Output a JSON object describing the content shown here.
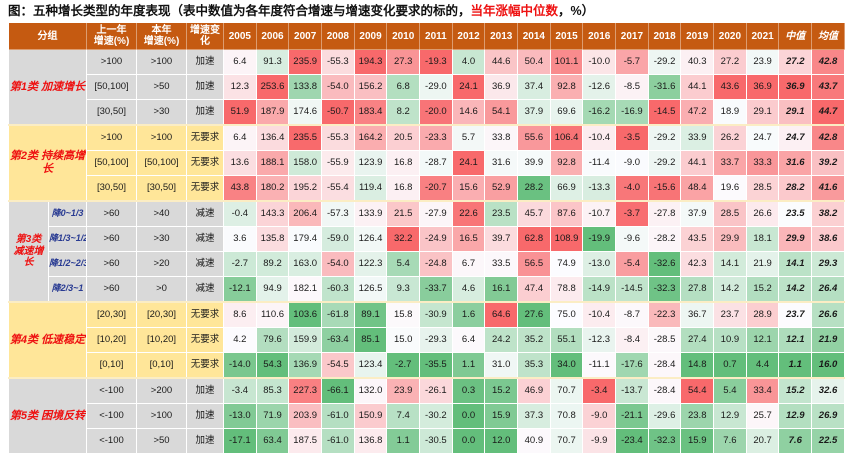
{
  "title": {
    "prefix": "图：五种增长类型的年度表现（表中数值为各年度符合增速与增速变化要求的标的，",
    "highlight": "当年涨幅中位数",
    "suffix": "，%）"
  },
  "colors": {
    "header_bg": "#C55A11",
    "header_text": "#FFFFFF",
    "gray_group_bg": "#D9D9D9",
    "yellow_group_bg": "#FFE699",
    "category_text": "#EE1111",
    "sublabel_text": "#283A92",
    "title_highlight": "#EE1111",
    "scale_min_green": "#63BE7B",
    "scale_mid_white": "#FCFCFF",
    "scale_max_red": "#F8696B"
  },
  "chart_data": {
    "type": "heatmap",
    "note": "color scale applied per column: green=min, white=median, red=max",
    "header": {
      "group": "分组",
      "prev": "上一年\n增速(%)",
      "curr": "本年\n增速(%)",
      "change": "增速变化",
      "years": [
        "2005",
        "2006",
        "2007",
        "2008",
        "2009",
        "2010",
        "2011",
        "2012",
        "2013",
        "2014",
        "2015",
        "2016",
        "2017",
        "2018",
        "2019",
        "2020",
        "2021"
      ],
      "median": "中值",
      "mean": "均值"
    },
    "groups": [
      {
        "name": "第1类  加速增长",
        "bg": "#D9D9D9",
        "rows": [
          {
            "prev": ">100",
            "curr": ">100",
            "change": "加速",
            "values": [
              6.4,
              91.3,
              235.9,
              -55.3,
              194.3,
              27.3,
              -19.3,
              4.0,
              44.6,
              50.4,
              101.1,
              -10.0,
              -5.7,
              -29.2,
              40.3,
              27.2,
              23.9
            ],
            "median": 27.2,
            "mean": 42.8
          },
          {
            "prev": "[50,100]",
            "curr": ">50",
            "change": "加速",
            "values": [
              12.3,
              253.6,
              133.8,
              -54.0,
              156.2,
              6.8,
              -29.0,
              24.1,
              36.9,
              37.4,
              92.8,
              -12.6,
              -8.5,
              -31.6,
              44.1,
              43.6,
              36.9
            ],
            "median": 36.9,
            "mean": 43.7
          },
          {
            "prev": "[30,50]",
            "curr": ">30",
            "change": "加速",
            "values": [
              51.9,
              187.9,
              174.6,
              -50.7,
              183.4,
              8.2,
              -20.0,
              14.6,
              54.1,
              37.9,
              69.6,
              -16.2,
              -16.9,
              -14.5,
              47.2,
              18.9,
              29.1
            ],
            "median": 29.1,
            "mean": 44.7
          }
        ]
      },
      {
        "name": "第2类  持续高增长",
        "bg": "#FFE699",
        "rows": [
          {
            "prev": ">100",
            "curr": ">100",
            "change": "无要求",
            "values": [
              6.4,
              136.4,
              235.5,
              -55.3,
              164.2,
              20.5,
              -23.3,
              5.7,
              33.8,
              55.6,
              106.4,
              -10.4,
              -3.5,
              -29.2,
              33.9,
              26.2,
              24.7
            ],
            "median": 24.7,
            "mean": 42.8
          },
          {
            "prev": "[50,100]",
            "curr": "[50,100]",
            "change": "无要求",
            "values": [
              13.6,
              188.1,
              158.0,
              -55.9,
              123.9,
              16.8,
              -28.7,
              24.1,
              31.6,
              39.9,
              92.8,
              -11.4,
              -9.0,
              -29.2,
              44.1,
              33.7,
              33.3
            ],
            "median": 31.6,
            "mean": 39.2
          },
          {
            "prev": "[30,50]",
            "curr": "[30,50]",
            "change": "无要求",
            "values": [
              43.8,
              180.2,
              195.2,
              -55.4,
              119.4,
              16.8,
              -20.7,
              15.6,
              52.9,
              28.2,
              66.9,
              -13.3,
              -4.0,
              -15.6,
              48.4,
              19.6,
              28.5
            ],
            "median": 28.2,
            "mean": 41.6
          }
        ]
      },
      {
        "name": "第3类\n减速增长",
        "bg": "#D9D9D9",
        "two_line": true,
        "rows": [
          {
            "sub": "降0~1/3",
            "prev": ">60",
            "curr": ">40",
            "change": "减速",
            "values": [
              -0.4,
              143.3,
              206.4,
              -57.3,
              133.9,
              21.5,
              -27.9,
              22.6,
              23.5,
              45.7,
              87.6,
              -10.7,
              -3.7,
              -27.8,
              37.9,
              28.5,
              26.6
            ],
            "median": 23.5,
            "mean": 38.2
          },
          {
            "sub": "降1/3~1/2",
            "prev": ">60",
            "curr": ">30",
            "change": "减速",
            "values": [
              3.6,
              135.8,
              179.4,
              -59.0,
              126.4,
              32.2,
              -24.9,
              16.5,
              39.7,
              62.8,
              108.9,
              -19.9,
              -9.6,
              -28.2,
              43.5,
              29.9,
              18.1
            ],
            "median": 29.9,
            "mean": 38.6
          },
          {
            "sub": "降1/2~2/3",
            "prev": ">60",
            "curr": ">20",
            "change": "减速",
            "values": [
              -2.7,
              89.2,
              163.0,
              -54.0,
              122.3,
              5.4,
              -24.8,
              6.7,
              33.5,
              56.5,
              74.9,
              -13.0,
              -5.4,
              -32.6,
              42.3,
              14.1,
              21.9
            ],
            "median": 14.1,
            "mean": 29.3
          },
          {
            "sub": "降2/3~1",
            "prev": ">60",
            "curr": ">0",
            "change": "减速",
            "values": [
              -12.1,
              94.9,
              182.1,
              -60.3,
              126.5,
              9.3,
              -33.7,
              4.6,
              16.1,
              47.4,
              78.8,
              -14.9,
              -14.5,
              -32.3,
              27.8,
              14.2,
              15.2
            ],
            "median": 14.2,
            "mean": 26.4
          }
        ]
      },
      {
        "name": "第4类  低速稳定",
        "bg": "#FFE699",
        "rows": [
          {
            "prev": "[20,30]",
            "curr": "[20,30]",
            "change": "无要求",
            "values": [
              8.6,
              110.6,
              103.6,
              -61.8,
              89.1,
              15.8,
              -30.9,
              1.6,
              64.6,
              27.6,
              75.0,
              -10.4,
              -8.7,
              -22.3,
              36.7,
              23.7,
              28.9
            ],
            "median": 23.7,
            "mean": 26.6
          },
          {
            "prev": "[10,20]",
            "curr": "[10,20]",
            "change": "无要求",
            "values": [
              4.2,
              79.6,
              159.9,
              -63.4,
              85.1,
              15.0,
              -29.3,
              6.4,
              24.2,
              35.2,
              55.1,
              -12.3,
              -8.4,
              -28.5,
              27.4,
              10.9,
              12.1
            ],
            "median": 12.1,
            "mean": 21.9
          },
          {
            "prev": "[0,10]",
            "curr": "[0,10]",
            "change": "无要求",
            "values": [
              -14.0,
              54.3,
              136.9,
              -54.5,
              123.4,
              -2.7,
              -35.5,
              1.1,
              31.0,
              35.3,
              34.0,
              -11.1,
              -17.6,
              -28.4,
              14.8,
              0.7,
              4.4
            ],
            "median": 1.1,
            "mean": 16.0
          }
        ]
      },
      {
        "name": "第5类  困境反转",
        "bg": "#D9D9D9",
        "rows": [
          {
            "prev": "<-100",
            "curr": ">200",
            "change": "加速",
            "values": [
              -3.4,
              85.3,
              227.3,
              -66.1,
              132.0,
              23.9,
              -26.1,
              0.3,
              15.2,
              46.9,
              70.7,
              -3.4,
              -13.7,
              -28.4,
              54.4,
              5.4,
              33.4
            ],
            "median": 15.2,
            "mean": 32.6
          },
          {
            "prev": "<-100",
            "curr": ">100",
            "change": "加速",
            "values": [
              -13.0,
              71.9,
              203.9,
              -61.0,
              150.9,
              7.4,
              -30.2,
              0.0,
              15.9,
              37.3,
              70.8,
              -9.0,
              -21.1,
              -29.6,
              23.8,
              12.9,
              25.7
            ],
            "median": 12.9,
            "mean": 26.9
          },
          {
            "prev": "<-100",
            "curr": ">50",
            "change": "加速",
            "values": [
              -17.1,
              63.4,
              187.5,
              -61.0,
              136.8,
              1.1,
              -30.5,
              0.0,
              12.0,
              40.9,
              70.7,
              -9.9,
              -23.4,
              -32.3,
              15.9,
              7.6,
              20.7
            ],
            "median": 7.6,
            "mean": 22.5
          }
        ]
      }
    ]
  }
}
